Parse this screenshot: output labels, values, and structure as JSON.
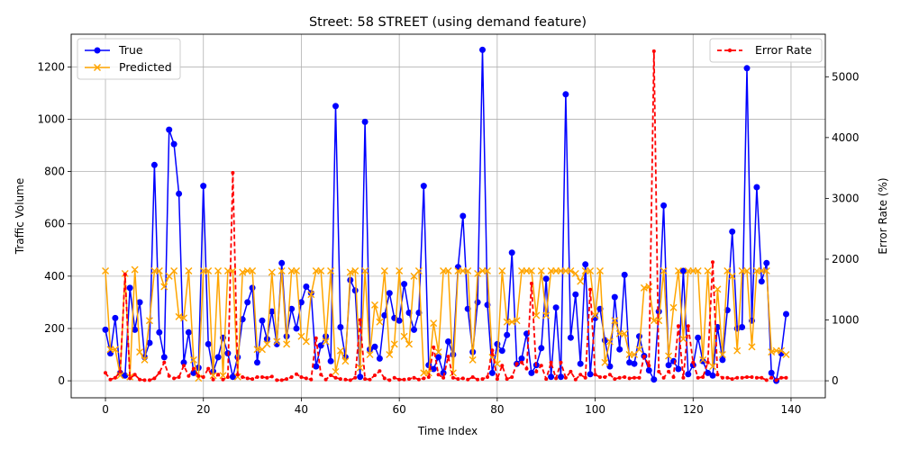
{
  "chart_data": {
    "type": "line",
    "title": "Street: 58 STREET (using demand feature)",
    "xlabel": "Time Index",
    "ylabel": "Traffic Volume",
    "y2label": "Error Rate (%)",
    "xlim": [
      -7,
      147
    ],
    "ylim": [
      -65,
      1325
    ],
    "y2lim": [
      -280,
      5700
    ],
    "xticks": [
      0,
      20,
      40,
      60,
      80,
      100,
      120,
      140
    ],
    "yticks": [
      0,
      200,
      400,
      600,
      800,
      1000,
      1200
    ],
    "y2ticks": [
      0,
      1000,
      2000,
      3000,
      4000,
      5000
    ],
    "grid": true,
    "legend_left": "upper-left",
    "legend_right": "upper-right",
    "series": [
      {
        "name": "True",
        "axis": "left",
        "color": "#0000ff",
        "marker": "circle",
        "values": [
          195,
          105,
          240,
          30,
          20,
          355,
          195,
          300,
          90,
          145,
          825,
          185,
          90,
          960,
          905,
          715,
          70,
          185,
          30,
          50,
          745,
          140,
          35,
          90,
          165,
          105,
          15,
          90,
          235,
          300,
          355,
          70,
          230,
          160,
          265,
          140,
          450,
          170,
          275,
          200,
          300,
          360,
          335,
          55,
          135,
          170,
          75,
          1050,
          205,
          90,
          385,
          345,
          15,
          990,
          120,
          130,
          85,
          250,
          335,
          240,
          230,
          370,
          260,
          195,
          260,
          745,
          60,
          45,
          90,
          30,
          150,
          100,
          435,
          630,
          275,
          110,
          300,
          1265,
          290,
          30,
          140,
          115,
          175,
          490,
          65,
          85,
          180,
          30,
          60,
          125,
          390,
          15,
          280,
          15,
          1095,
          165,
          330,
          65,
          445,
          25,
          240,
          275,
          155,
          55,
          320,
          120,
          405,
          70,
          65,
          170,
          95,
          40,
          5,
          265,
          670,
          60,
          75,
          45,
          420,
          25,
          60,
          165,
          75,
          30,
          20,
          205,
          80,
          270,
          570,
          200,
          205,
          1195,
          230,
          740,
          380,
          450,
          30,
          0,
          105,
          255
        ]
      },
      {
        "name": "Predicted",
        "axis": "left",
        "color": "#ffa500",
        "marker": "x",
        "values": [
          420,
          120,
          120,
          20,
          410,
          15,
          425,
          110,
          80,
          230,
          420,
          420,
          360,
          400,
          420,
          245,
          240,
          420,
          80,
          10,
          420,
          420,
          20,
          420,
          20,
          420,
          420,
          15,
          415,
          420,
          420,
          120,
          120,
          140,
          415,
          150,
          420,
          140,
          420,
          420,
          170,
          150,
          330,
          420,
          420,
          150,
          420,
          35,
          115,
          75,
          415,
          420,
          50,
          420,
          100,
          290,
          225,
          420,
          100,
          140,
          420,
          170,
          140,
          400,
          420,
          30,
          30,
          220,
          110,
          420,
          420,
          30,
          420,
          420,
          420,
          80,
          410,
          420,
          420,
          90,
          65,
          420,
          225,
          225,
          230,
          420,
          420,
          420,
          250,
          420,
          250,
          420,
          420,
          420,
          420,
          420,
          410,
          380,
          420,
          420,
          250,
          420,
          70,
          150,
          230,
          180,
          180,
          100,
          100,
          120,
          355,
          360,
          230,
          230,
          420,
          95,
          280,
          420,
          160,
          420,
          420,
          420,
          80,
          420,
          55,
          350,
          100,
          420,
          400,
          115,
          420,
          420,
          130,
          420,
          420,
          420,
          110,
          115,
          115,
          100
        ]
      },
      {
        "name": "Error Rate",
        "axis": "right",
        "color": "#ff0000",
        "style": "dashed",
        "marker": "dot",
        "values": [
          130,
          20,
          50,
          150,
          1750,
          40,
          100,
          20,
          10,
          10,
          40,
          130,
          300,
          80,
          40,
          60,
          250,
          80,
          200,
          80,
          60,
          200,
          20,
          100,
          20,
          60,
          3420,
          100,
          60,
          40,
          30,
          60,
          60,
          50,
          70,
          10,
          10,
          30,
          60,
          110,
          60,
          40,
          20,
          700,
          100,
          20,
          90,
          50,
          30,
          20,
          10,
          50,
          1000,
          30,
          20,
          90,
          160,
          40,
          10,
          50,
          20,
          20,
          30,
          50,
          20,
          40,
          60,
          550,
          100,
          50,
          400,
          50,
          30,
          40,
          20,
          60,
          20,
          30,
          60,
          500,
          30,
          250,
          30,
          60,
          280,
          300,
          200,
          1600,
          150,
          250,
          30,
          300,
          40,
          300,
          50,
          150,
          20,
          100,
          50,
          1500,
          100,
          60,
          60,
          100,
          30,
          50,
          60,
          40,
          50,
          50,
          400,
          250,
          5420,
          150,
          50,
          150,
          60,
          900,
          50,
          900,
          300,
          50,
          60,
          300,
          1950,
          100,
          50,
          50,
          30,
          50,
          50,
          60,
          60,
          50,
          50,
          10,
          50,
          10,
          50,
          50
        ]
      }
    ]
  }
}
